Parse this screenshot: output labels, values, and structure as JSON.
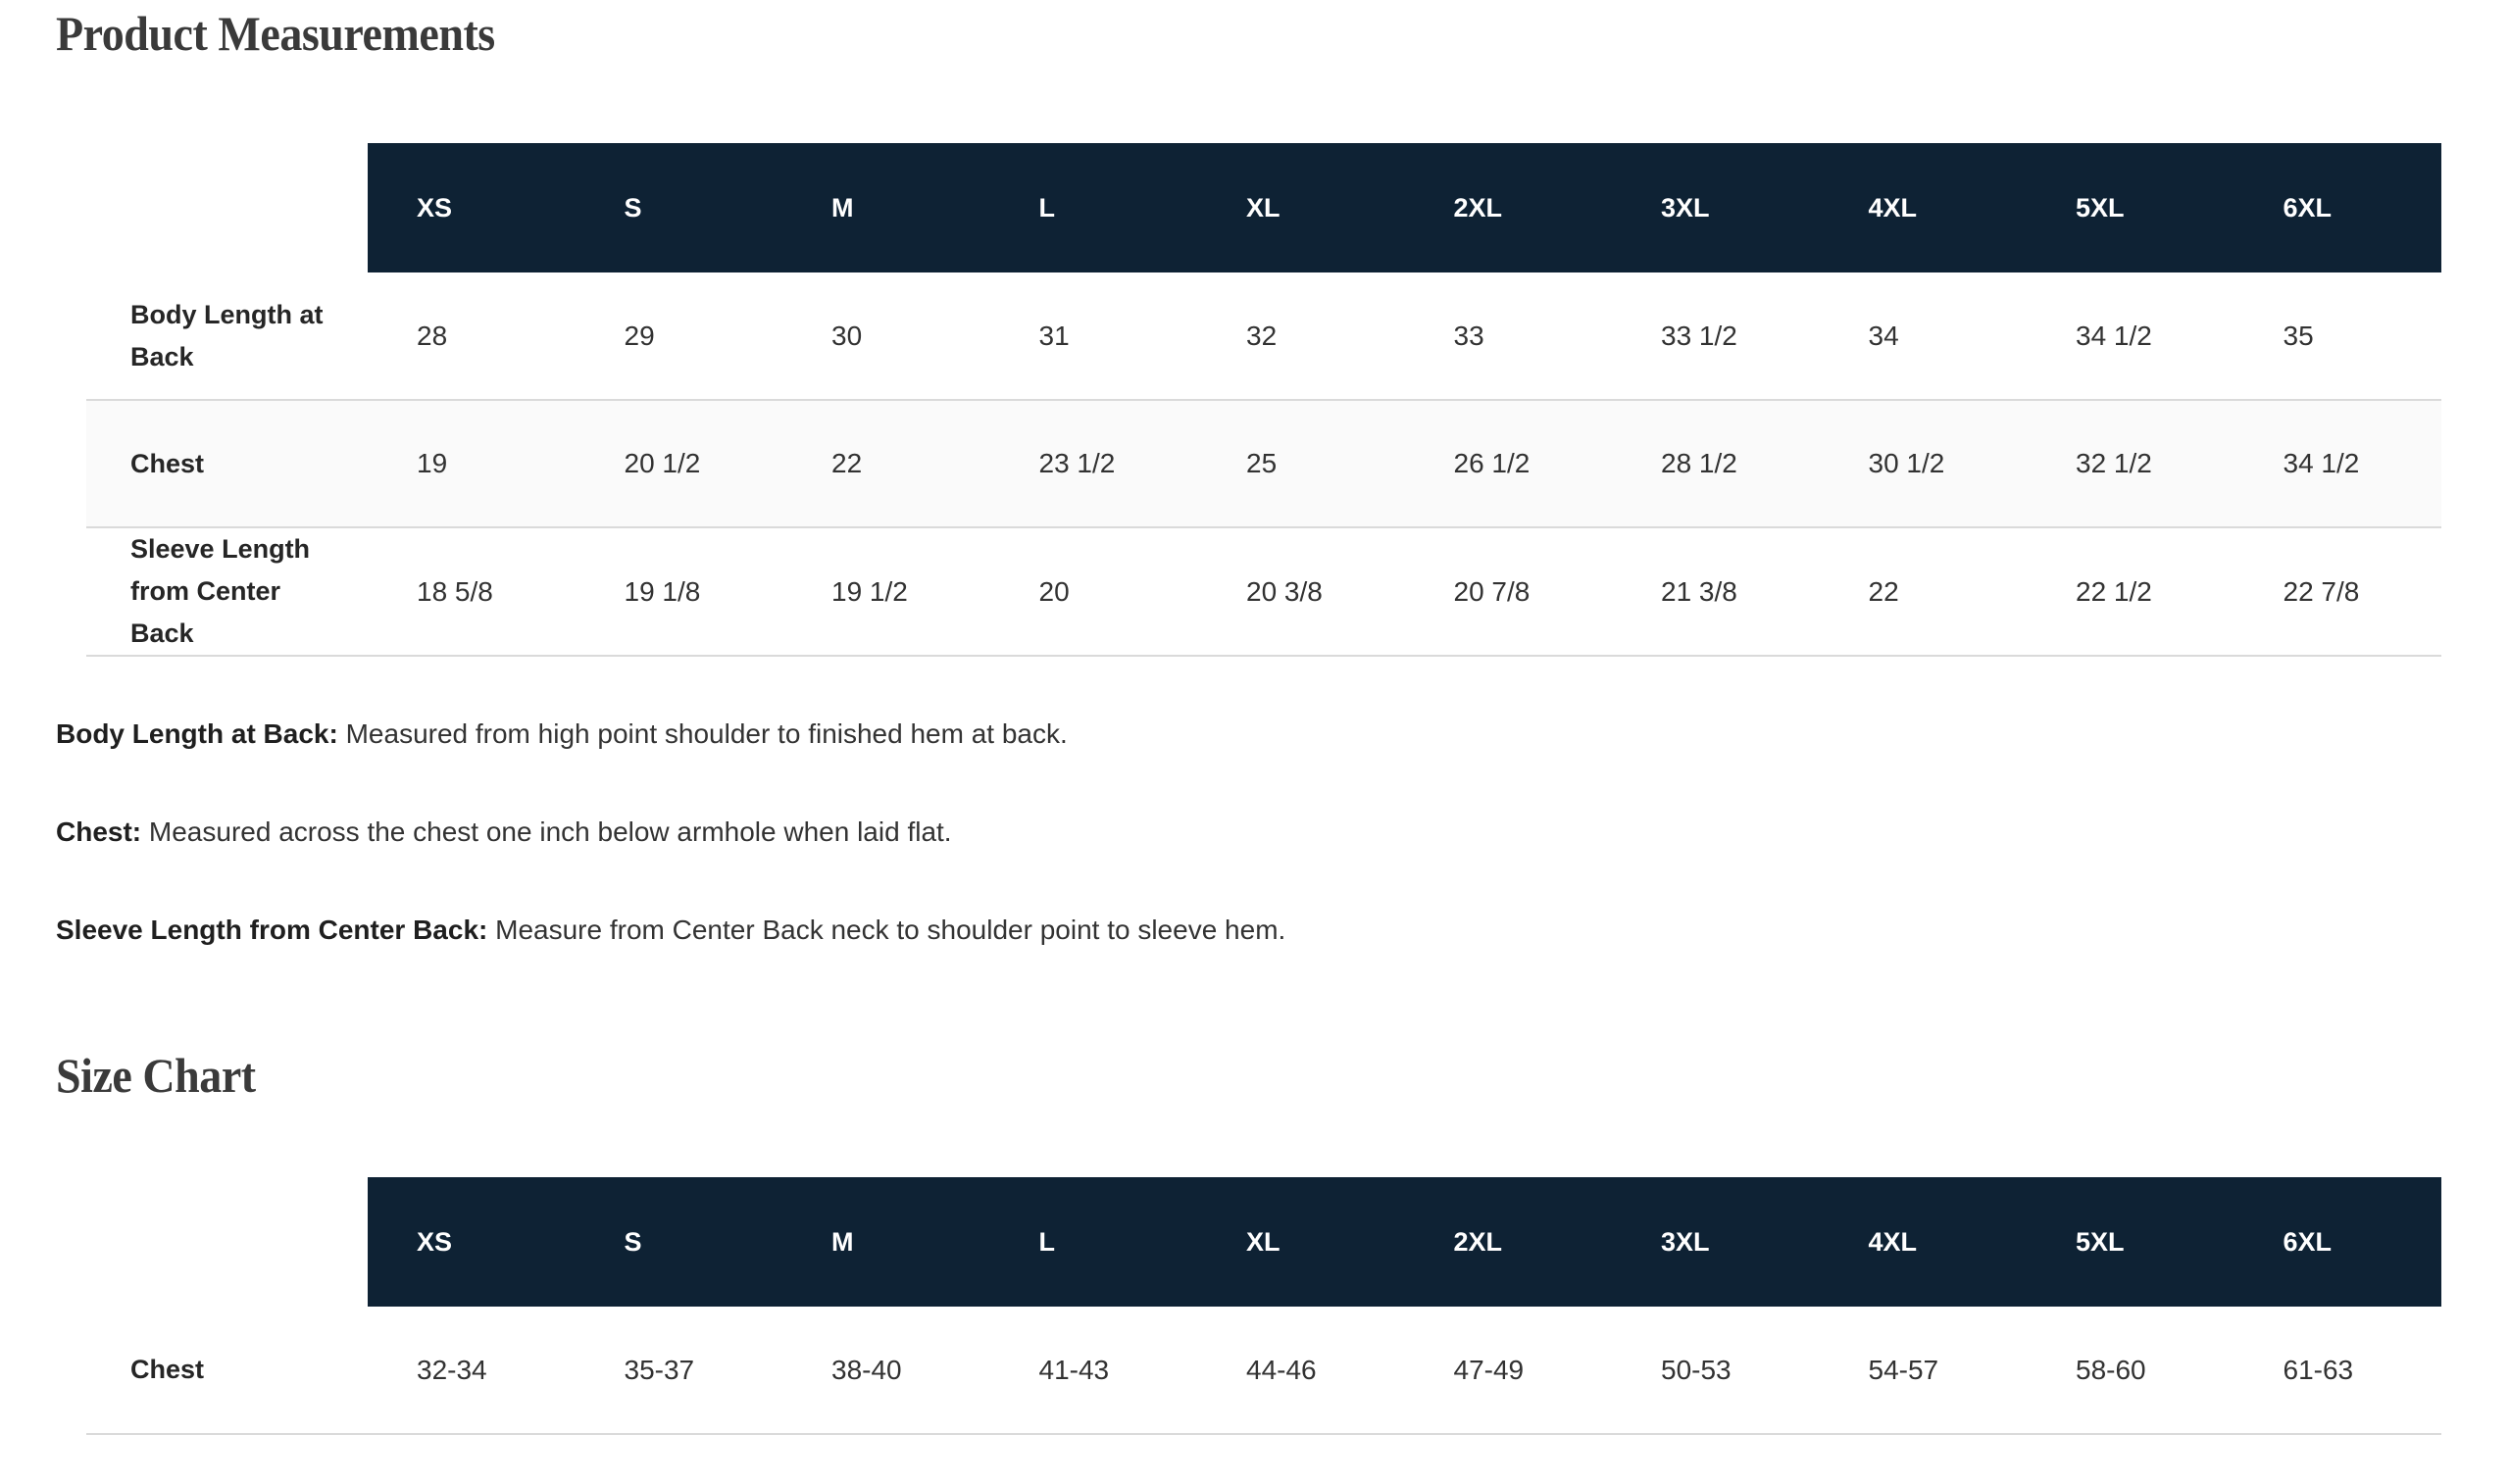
{
  "colors": {
    "header_background": "#0e2234",
    "header_text": "#ffffff",
    "row_stripe": "#fafafa",
    "divider": "#dadada",
    "heading_text": "#3a3a3a",
    "body_text": "#323232"
  },
  "product_measurements": {
    "title": "Product Measurements",
    "columns": [
      "XS",
      "S",
      "M",
      "L",
      "XL",
      "2XL",
      "3XL",
      "4XL",
      "5XL",
      "6XL"
    ],
    "rows": [
      {
        "label": "Body Length at Back",
        "values": [
          "28",
          "29",
          "30",
          "31",
          "32",
          "33",
          "33 1/2",
          "34",
          "34 1/2",
          "35"
        ]
      },
      {
        "label": "Chest",
        "values": [
          "19",
          "20 1/2",
          "22",
          "23 1/2",
          "25",
          "26 1/2",
          "28 1/2",
          "30 1/2",
          "32 1/2",
          "34 1/2"
        ]
      },
      {
        "label": "Sleeve Length from Center Back",
        "values": [
          "18 5/8",
          "19 1/8",
          "19 1/2",
          "20",
          "20 3/8",
          "20 7/8",
          "21 3/8",
          "22",
          "22 1/2",
          "22 7/8"
        ]
      }
    ],
    "notes": [
      {
        "term": "Body Length at Back:",
        "definition": "Measured from high point shoulder to finished hem at back."
      },
      {
        "term": "Chest:",
        "definition": "Measured across the chest one inch below armhole when laid flat."
      },
      {
        "term": "Sleeve Length from Center Back:",
        "definition": "Measure from Center Back neck to shoulder point to sleeve hem."
      }
    ]
  },
  "size_chart": {
    "title": "Size Chart",
    "columns": [
      "XS",
      "S",
      "M",
      "L",
      "XL",
      "2XL",
      "3XL",
      "4XL",
      "5XL",
      "6XL"
    ],
    "rows": [
      {
        "label": "Chest",
        "values": [
          "32-34",
          "35-37",
          "38-40",
          "41-43",
          "44-46",
          "47-49",
          "50-53",
          "54-57",
          "58-60",
          "61-63"
        ]
      }
    ]
  }
}
